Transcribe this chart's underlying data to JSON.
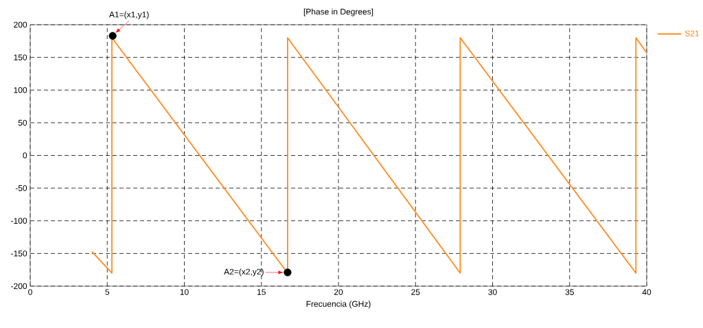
{
  "chart_data": {
    "type": "line",
    "title": "[Phase in Degrees]",
    "xlabel": "Frecuencia (GHz)",
    "series": [
      {
        "name": "S21",
        "color": "#ff8a1c",
        "x": [
          4,
          5.3,
          5.3,
          16.7,
          16.7,
          27.9,
          27.9,
          39.3,
          39.3,
          40
        ],
        "values": [
          -147,
          -180,
          180,
          -180,
          180,
          -180,
          180,
          -180,
          180,
          157
        ]
      },
      {
        "type": "scatter",
        "color": "#000000",
        "marker": "circle",
        "x": [
          5.35,
          16.7
        ],
        "values": [
          183,
          -179
        ]
      }
    ],
    "annotations": [
      {
        "text": "A1=(x1,y1)",
        "x": 5.35,
        "y": 183
      },
      {
        "text": "A2=(x2,y2)",
        "x": 16.7,
        "y": -179
      }
    ],
    "xlim": [
      0,
      40
    ],
    "ylim": [
      -200,
      200
    ],
    "xticks": [
      0,
      5,
      10,
      15,
      20,
      25,
      30,
      35,
      40
    ],
    "yticks": [
      -200,
      -150,
      -100,
      -50,
      0,
      50,
      100,
      150,
      200
    ],
    "grid": true,
    "legend": "top right"
  }
}
